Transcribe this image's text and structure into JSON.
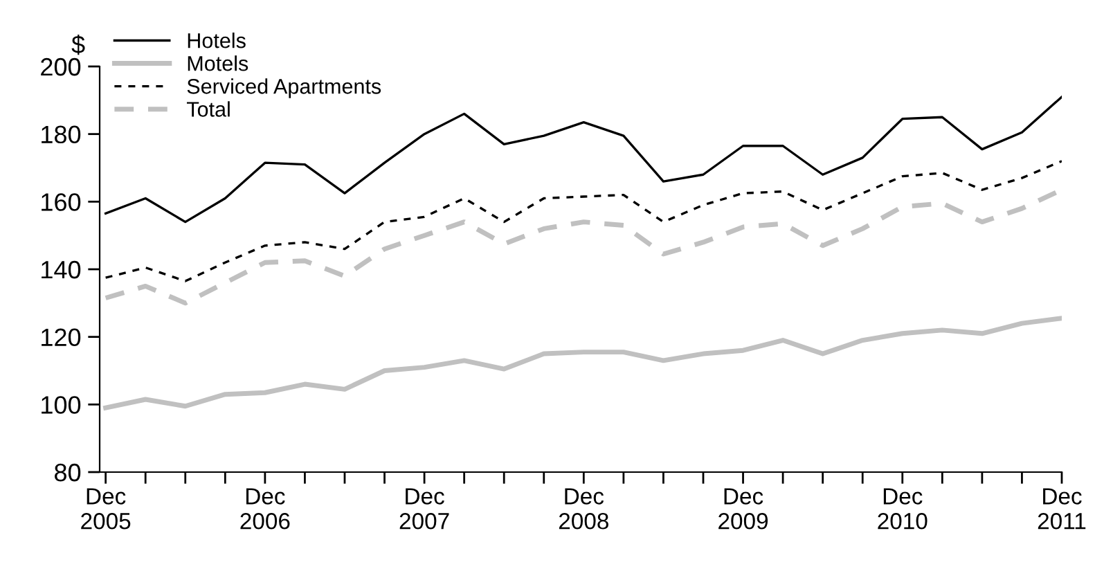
{
  "chart_data": {
    "type": "line",
    "ylabel": "$",
    "categories": [
      "Dec\n2005",
      null,
      null,
      null,
      "Dec\n2006",
      null,
      null,
      null,
      "Dec\n2007",
      null,
      null,
      null,
      "Dec\n2008",
      null,
      null,
      null,
      "Dec\n2009",
      null,
      null,
      null,
      "Dec\n2010",
      null,
      null,
      null,
      "Dec\n2011"
    ],
    "series": [
      {
        "name": "Hotels",
        "color": "#000000",
        "line_style": "solid",
        "values": [
          156.5,
          161,
          154,
          161,
          171.5,
          171,
          162.5,
          171.5,
          180,
          186,
          177,
          179.5,
          183.5,
          179.5,
          166,
          168,
          176.5,
          176.5,
          168,
          173,
          184.5,
          185,
          175.5,
          180.5,
          191
        ]
      },
      {
        "name": "Motels",
        "color": "#c0c0c0",
        "line_style": "solid",
        "values": [
          99,
          101.5,
          99.5,
          103,
          103.5,
          106,
          104.5,
          110,
          111,
          113,
          110.5,
          115,
          115.5,
          115.5,
          113,
          115,
          116,
          119,
          115,
          119,
          121,
          122,
          121,
          124,
          125.5
        ]
      },
      {
        "name": "Serviced Apartments",
        "color": "#000000",
        "line_style": "dashed",
        "values": [
          137.5,
          140.5,
          136.5,
          142,
          147,
          148,
          146,
          154,
          155.5,
          161,
          154,
          161,
          161.5,
          162,
          154,
          159,
          162.5,
          163,
          157.5,
          162.5,
          167.5,
          168.5,
          163.5,
          167,
          172
        ]
      },
      {
        "name": "Total",
        "color": "#c0c0c0",
        "line_style": "dashed",
        "values": [
          131.5,
          135,
          130,
          136,
          142,
          142.5,
          138,
          146,
          150,
          154,
          147.5,
          152,
          154,
          153,
          144.5,
          148,
          152.5,
          153.5,
          147,
          152,
          158.5,
          159.5,
          154,
          158,
          163.5
        ]
      }
    ],
    "ylim": [
      80,
      200
    ],
    "yticks": [
      80,
      100,
      120,
      140,
      160,
      180,
      200
    ],
    "grid": false,
    "legend": "top left",
    "marker": "none"
  }
}
